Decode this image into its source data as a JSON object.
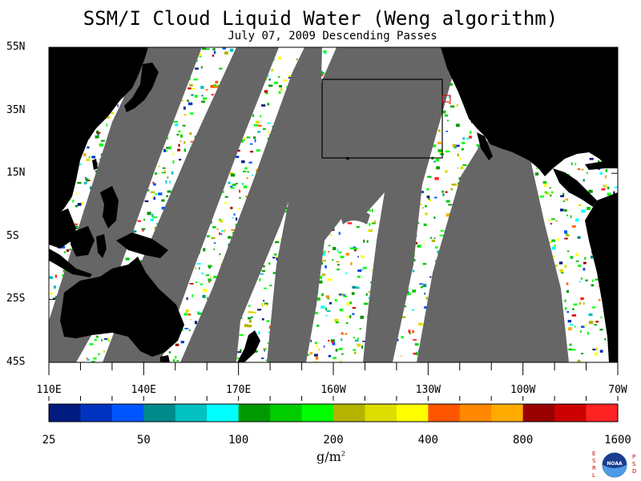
{
  "title": "SSM/I Cloud Liquid Water (Weng algorithm)",
  "subtitle": "July 07, 2009  Descending Passes",
  "latitude_labels": [
    {
      "label": "55N",
      "lat": 55
    },
    {
      "label": "35N",
      "lat": 35
    },
    {
      "label": "15N",
      "lat": 15
    },
    {
      "label": "5S",
      "lat": -5
    },
    {
      "label": "25S",
      "lat": -25
    },
    {
      "label": "45S",
      "lat": -45
    }
  ],
  "longitude_labels": [
    {
      "label": "110E",
      "lon": 110
    },
    {
      "label": "140E",
      "lon": 140
    },
    {
      "label": "170E",
      "lon": 170
    },
    {
      "label": "160W",
      "lon": 200
    },
    {
      "label": "130W",
      "lon": 230
    },
    {
      "label": "100W",
      "lon": 260
    },
    {
      "label": "70W",
      "lon": 290
    }
  ],
  "map_extent": {
    "lon_min": 110,
    "lon_max": 290,
    "lat_min": -45,
    "lat_max": 55
  },
  "colorbar": {
    "colors": [
      "#001a80",
      "#0033c0",
      "#0055ff",
      "#008b8b",
      "#00c0c0",
      "#00ffff",
      "#009900",
      "#00cc00",
      "#00ff00",
      "#b3b300",
      "#dddd00",
      "#ffff00",
      "#ff5500",
      "#ff8800",
      "#ffaa00",
      "#990000",
      "#cc0000",
      "#ff2222"
    ],
    "tick_labels": [
      "25",
      "50",
      "100",
      "200",
      "400",
      "800",
      "1600"
    ],
    "unit_label": "g/m",
    "unit_superscript": "2"
  },
  "colors": {
    "land": "#000000",
    "no_data": "#666666",
    "clear_ocean": "#ffffff"
  },
  "logo": {
    "left_letters": "ESRL",
    "right_letters": "PSD",
    "emblem_text": "NOAA"
  }
}
